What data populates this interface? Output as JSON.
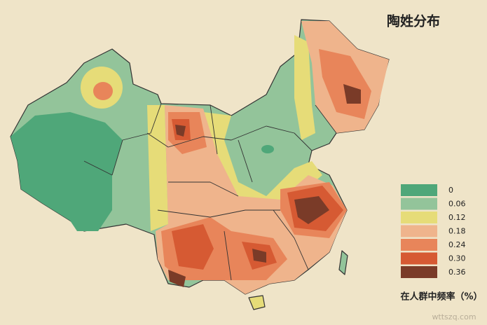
{
  "title": "陶姓分布",
  "legend": {
    "items": [
      {
        "label": "0",
        "color": "#4fa779"
      },
      {
        "label": "0.06",
        "color": "#93c49a"
      },
      {
        "label": "0.12",
        "color": "#e6dc78"
      },
      {
        "label": "0.18",
        "color": "#efb48c"
      },
      {
        "label": "0.24",
        "color": "#e8855a"
      },
      {
        "label": "0.30",
        "color": "#d65a33"
      },
      {
        "label": "0.36",
        "color": "#7a3b28"
      }
    ],
    "caption": "在人群中频率（%）"
  },
  "watermark": "wttszq.com"
}
